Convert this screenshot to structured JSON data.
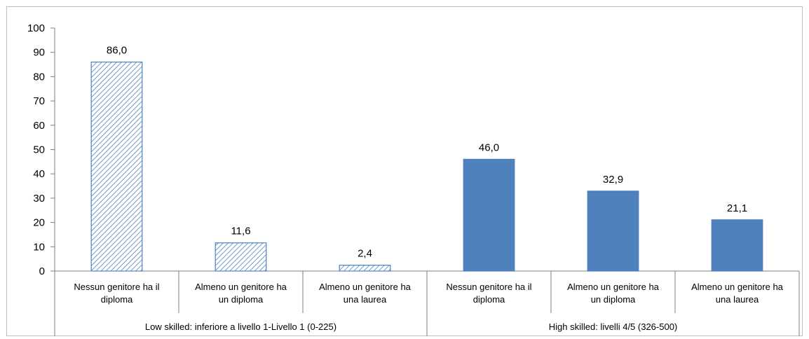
{
  "chart_data": {
    "type": "bar",
    "title": "",
    "xlabel": "",
    "ylabel": "",
    "ylim": [
      0,
      100
    ],
    "yticks": [
      0,
      10,
      20,
      30,
      40,
      50,
      60,
      70,
      80,
      90,
      100
    ],
    "grid": false,
    "legend": "none",
    "groups": [
      {
        "label": "Low skilled: inferiore a livello 1-Livello 1 (0-225)",
        "style": "hatched",
        "color": "#4f81bd",
        "bars": [
          {
            "category": [
              "Nessun genitore ha il",
              "diploma"
            ],
            "value": 86.0,
            "label": "86,0"
          },
          {
            "category": [
              "Almeno un genitore ha",
              "un diploma"
            ],
            "value": 11.6,
            "label": "11,6"
          },
          {
            "category": [
              "Almeno un genitore ha",
              "una laurea"
            ],
            "value": 2.4,
            "label": "2,4"
          }
        ]
      },
      {
        "label": "High skilled: livelli 4/5 (326-500)",
        "style": "solid",
        "color": "#4f81bd",
        "bars": [
          {
            "category": [
              "Nessun genitore ha il",
              "diploma"
            ],
            "value": 46.0,
            "label": "46,0"
          },
          {
            "category": [
              "Almeno un genitore ha",
              "un diploma"
            ],
            "value": 32.9,
            "label": "32,9"
          },
          {
            "category": [
              "Almeno un genitore ha",
              "una laurea"
            ],
            "value": 21.1,
            "label": "21,1"
          }
        ]
      }
    ]
  }
}
